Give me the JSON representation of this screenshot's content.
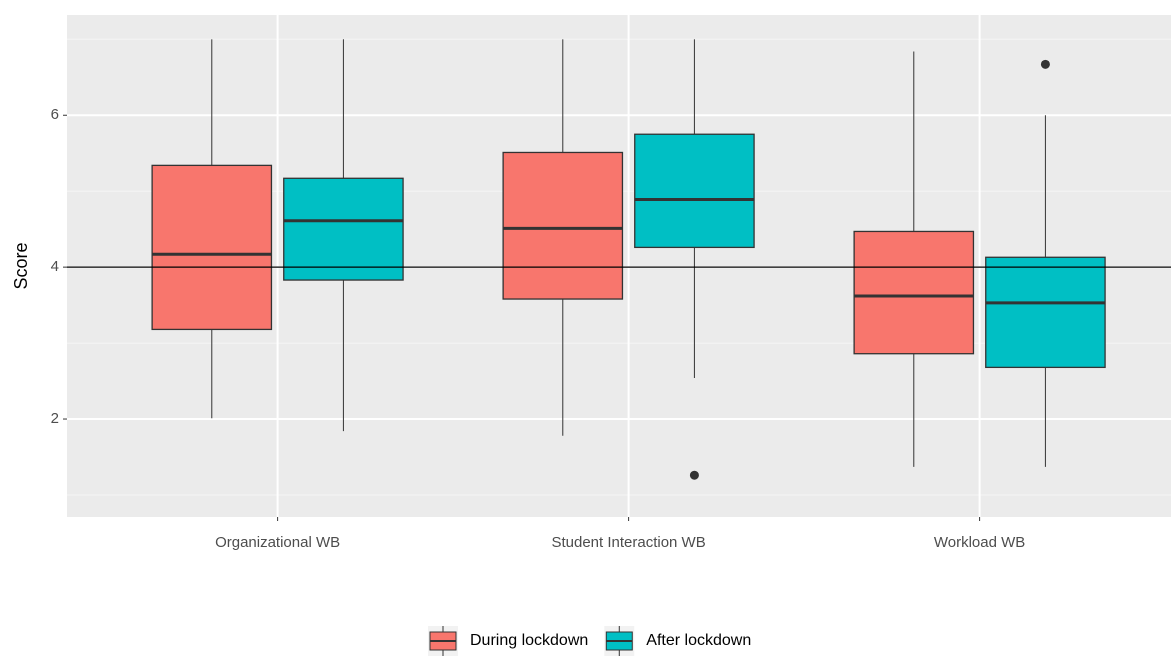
{
  "chart_data": {
    "type": "boxplot",
    "y_label": "Score",
    "categories": [
      "Organizational WB",
      "Student Interaction WB",
      "Workload WB"
    ],
    "series": [
      {
        "name": "During lockdown",
        "color": "#f8766d",
        "whisker_low": [
          2.01,
          1.78,
          1.37
        ],
        "q1": [
          3.18,
          3.58,
          2.86
        ],
        "median": [
          4.17,
          4.51,
          3.62
        ],
        "q3": [
          5.34,
          5.51,
          4.47
        ],
        "whisker_high": [
          7.0,
          7.0,
          6.84
        ],
        "outliers": [
          [],
          [],
          []
        ]
      },
      {
        "name": "After lockdown",
        "color": "#00bfc4",
        "whisker_low": [
          1.84,
          2.54,
          1.37
        ],
        "q1": [
          3.83,
          4.26,
          2.68
        ],
        "median": [
          4.61,
          4.89,
          3.53
        ],
        "q3": [
          5.17,
          5.75,
          4.13
        ],
        "whisker_high": [
          7.0,
          7.0,
          6.0
        ],
        "outliers": [
          [],
          [
            1.26
          ],
          [
            6.67
          ]
        ]
      }
    ],
    "ylim": [
      0.71,
      7.32
    ],
    "yticks": [
      2,
      4,
      6
    ],
    "minor_yticks": [
      1,
      3,
      5,
      7
    ],
    "hline": 4,
    "grid": true,
    "legend_position": "bottom"
  }
}
